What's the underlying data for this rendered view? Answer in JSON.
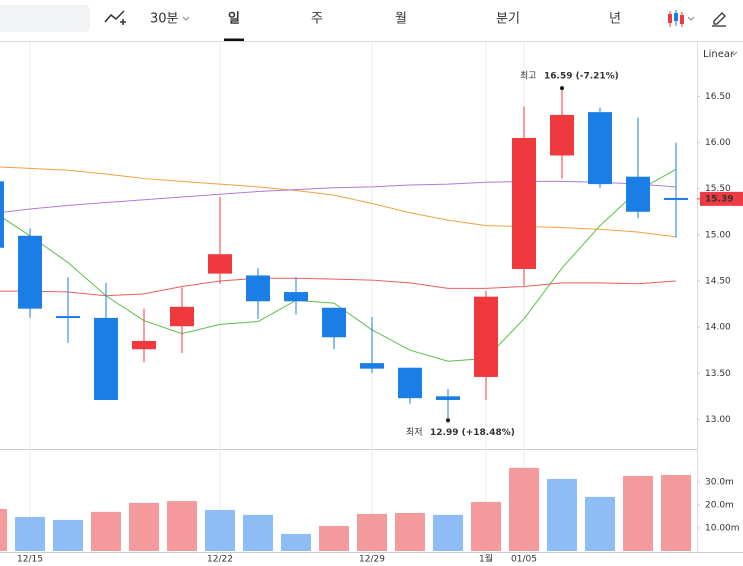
{
  "toolbar": {
    "interval": "30분",
    "tabs": [
      "일",
      "주",
      "월",
      "분기",
      "년"
    ],
    "active_tab": 0,
    "scale": "Linear"
  },
  "chart_data": [
    {
      "type": "candlestick",
      "categories": [
        null,
        "12/15",
        null,
        null,
        null,
        null,
        "12/22",
        null,
        null,
        null,
        "12/29",
        null,
        null,
        "1월",
        "01/05",
        null,
        null,
        null,
        null
      ],
      "open": [
        15.58,
        14.99,
        14.12,
        14.1,
        13.76,
        14.01,
        14.58,
        14.56,
        14.38,
        14.21,
        13.61,
        13.56,
        13.25,
        13.46,
        14.63,
        15.86,
        16.33,
        15.63,
        15.4
      ],
      "high": [
        15.6,
        15.07,
        14.54,
        14.48,
        14.2,
        14.43,
        15.41,
        14.64,
        14.54,
        14.21,
        14.11,
        13.56,
        13.33,
        14.39,
        16.39,
        16.59,
        16.38,
        16.27,
        16.0
      ],
      "low": [
        14.8,
        14.1,
        13.83,
        13.21,
        13.62,
        13.72,
        14.47,
        14.09,
        14.14,
        13.76,
        13.5,
        13.17,
        12.99,
        13.21,
        14.45,
        15.61,
        15.51,
        15.18,
        14.97
      ],
      "close": [
        14.86,
        14.2,
        14.1,
        13.21,
        13.85,
        14.22,
        14.79,
        14.28,
        14.28,
        13.89,
        13.55,
        13.23,
        13.21,
        14.33,
        16.05,
        16.3,
        15.55,
        15.25,
        15.39
      ],
      "up_color": "#f0383f",
      "down_color": "#1a7ee6",
      "series": [
        {
          "color": "#5cbf4a",
          "values": [
            15.26,
            14.99,
            14.7,
            14.34,
            14.07,
            13.93,
            14.03,
            14.06,
            14.29,
            14.26,
            13.97,
            13.75,
            13.63,
            13.66,
            14.09,
            14.64,
            15.1,
            15.48,
            15.71
          ]
        },
        {
          "color": "#f3a03e",
          "values": [
            15.74,
            15.72,
            15.7,
            15.66,
            15.61,
            15.58,
            15.55,
            15.52,
            15.48,
            15.43,
            15.34,
            15.24,
            15.16,
            15.1,
            15.09,
            15.08,
            15.06,
            15.03,
            14.98
          ]
        },
        {
          "color": "#b57ad6",
          "values": [
            15.23,
            15.28,
            15.32,
            15.35,
            15.38,
            15.41,
            15.44,
            15.47,
            15.49,
            15.51,
            15.52,
            15.54,
            15.55,
            15.57,
            15.58,
            15.58,
            15.57,
            15.55,
            15.52
          ]
        },
        {
          "color": "#e8605e",
          "values": [
            14.39,
            14.39,
            14.38,
            14.34,
            14.36,
            14.44,
            14.5,
            14.53,
            14.53,
            14.52,
            14.51,
            14.48,
            14.42,
            14.42,
            14.44,
            14.48,
            14.48,
            14.47,
            14.5
          ]
        }
      ],
      "ylim": [
        12.69,
        17.09
      ],
      "yticks": [
        {
          "value": 13,
          "label": "13.00"
        },
        {
          "value": 13.5,
          "label": "13.50"
        },
        {
          "value": 14,
          "label": "14.00"
        },
        {
          "value": 14.5,
          "label": "14.50"
        },
        {
          "value": 15,
          "label": "15.00"
        },
        {
          "value": 15.5,
          "label": "15.50"
        },
        {
          "value": 16,
          "label": "16.00"
        },
        {
          "value": 16.5,
          "label": "16.50"
        }
      ],
      "annotations": [
        {
          "label": "최고",
          "text": "16.59 (-7.21%)"
        },
        {
          "label": "최저",
          "text": "12.99 (+18.48%)"
        }
      ],
      "last_price": {
        "value": 15.39,
        "label": "15.39",
        "color": "#ee3a42"
      }
    },
    {
      "type": "bar",
      "values": [
        18.3,
        14.8,
        13.5,
        17.0,
        20.9,
        21.7,
        17.8,
        15.7,
        7.4,
        10.9,
        16.1,
        16.5,
        15.7,
        21.3,
        36.1,
        31.3,
        23.5,
        32.6,
        33.0
      ],
      "colors": [
        "#f49a9c",
        "#8ebcf4",
        "#8ebcf4",
        "#f49a9c",
        "#f49a9c",
        "#f49a9c",
        "#8ebcf4",
        "#8ebcf4",
        "#8ebcf4",
        "#f49a9c",
        "#f49a9c",
        "#f49a9c",
        "#8ebcf4",
        "#f49a9c",
        "#f49a9c",
        "#8ebcf4",
        "#8ebcf4",
        "#f49a9c",
        "#f49a9c"
      ],
      "ylim": [
        0,
        43
      ],
      "yticks": [
        {
          "value": 10,
          "label": "10.00m"
        },
        {
          "value": 20,
          "label": "20.0m"
        },
        {
          "value": 30,
          "label": "30.0m"
        }
      ]
    }
  ]
}
